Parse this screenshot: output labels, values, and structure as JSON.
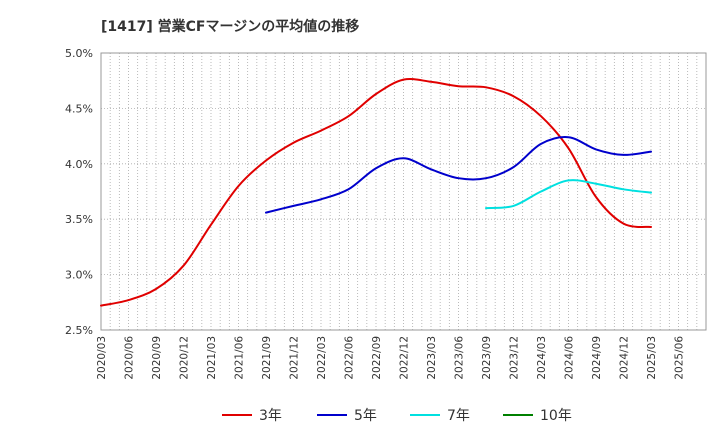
{
  "chart_data": {
    "type": "line",
    "title": "[1417]  営業CFマージンの平均値の推移",
    "xlabel": "",
    "ylabel": "",
    "ylim": [
      2.5,
      5.0
    ],
    "y_ticks": [
      "2.5%",
      "3.0%",
      "3.5%",
      "4.0%",
      "4.5%",
      "5.0%"
    ],
    "y_tick_values": [
      2.5,
      3.0,
      3.5,
      4.0,
      4.5,
      5.0
    ],
    "x_tick_labels": [
      "2020/03",
      "2020/06",
      "2020/09",
      "2020/12",
      "2021/03",
      "2021/06",
      "2021/09",
      "2021/12",
      "2022/03",
      "2022/06",
      "2022/09",
      "2022/12",
      "2023/03",
      "2023/06",
      "2023/09",
      "2023/12",
      "2024/03",
      "2024/06",
      "2024/09",
      "2024/12",
      "2025/03",
      "2025/06"
    ],
    "grid": true,
    "legend_position": "bottom",
    "series": [
      {
        "name": "3年",
        "color": "#e00000",
        "x": [
          "2020/03",
          "2020/06",
          "2020/09",
          "2020/12",
          "2021/03",
          "2021/06",
          "2021/09",
          "2021/12",
          "2022/03",
          "2022/06",
          "2022/09",
          "2022/12",
          "2023/03",
          "2023/06",
          "2023/09",
          "2023/12",
          "2024/03",
          "2024/06",
          "2024/09",
          "2024/12",
          "2025/03"
        ],
        "values": [
          2.72,
          2.77,
          2.87,
          3.08,
          3.45,
          3.8,
          4.03,
          4.19,
          4.3,
          4.43,
          4.63,
          4.76,
          4.74,
          4.7,
          4.69,
          4.61,
          4.43,
          4.14,
          3.7,
          3.46,
          3.43
        ]
      },
      {
        "name": "5年",
        "color": "#0000cc",
        "x": [
          "2021/09",
          "2021/12",
          "2022/03",
          "2022/06",
          "2022/09",
          "2022/12",
          "2023/03",
          "2023/06",
          "2023/09",
          "2023/12",
          "2024/03",
          "2024/06",
          "2024/09",
          "2024/12",
          "2025/03"
        ],
        "values": [
          3.56,
          3.62,
          3.68,
          3.77,
          3.96,
          4.05,
          3.95,
          3.87,
          3.87,
          3.97,
          4.18,
          4.24,
          4.13,
          4.08,
          4.11
        ]
      },
      {
        "name": "7年",
        "color": "#00e0e0",
        "x": [
          "2023/09",
          "2023/12",
          "2024/03",
          "2024/06",
          "2024/09",
          "2024/12",
          "2025/03"
        ],
        "values": [
          3.6,
          3.62,
          3.75,
          3.85,
          3.82,
          3.77,
          3.74
        ]
      },
      {
        "name": "10年",
        "color": "#008000",
        "x": [],
        "values": []
      }
    ]
  }
}
